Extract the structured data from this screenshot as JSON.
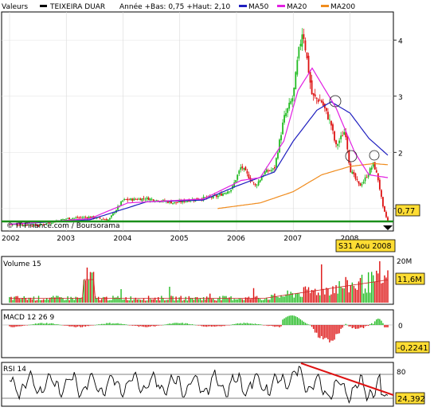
{
  "legend": {
    "prefix": "Valeurs",
    "security": "TEIXEIRA DUAR",
    "year_info": "Année +Bas: 0,75 +Haut: 2,10",
    "items": [
      {
        "label": "MA50",
        "color": "#1f1fbf"
      },
      {
        "label": "MA20",
        "color": "#e21fe2"
      },
      {
        "label": "MA200",
        "color": "#f08c1e"
      }
    ],
    "swatch_color": "#000000"
  },
  "credit": "© IT-Finance.com / Boursorama",
  "date_badge": "S31 Aou 2008",
  "chart_data": [
    {
      "type": "line",
      "title": "TEIXEIRA DUAR",
      "description_kind": "candlestick price with moving averages",
      "x_tick_labels": [
        "2002",
        "2003",
        "2004",
        "2005",
        "2006",
        "2007",
        "2008"
      ],
      "y_tick_labels": [
        "1",
        "2",
        "3",
        "4"
      ],
      "ylim": [
        0.6,
        4.5
      ],
      "last_value_label": "0,77",
      "support_level": 0.77,
      "colors": {
        "up": "#22bb22",
        "down": "#dd1111",
        "support": "#1a8f1a"
      },
      "close_anchors": [
        [
          "2002-01",
          0.72
        ],
        [
          "2002-07",
          0.7
        ],
        [
          "2003-01",
          0.82
        ],
        [
          "2003-06",
          0.85
        ],
        [
          "2003-10",
          0.8
        ],
        [
          "2004-01",
          1.15
        ],
        [
          "2004-06",
          1.18
        ],
        [
          "2004-12",
          1.1
        ],
        [
          "2005-03",
          1.15
        ],
        [
          "2005-09",
          1.22
        ],
        [
          "2005-12",
          1.35
        ],
        [
          "2006-02",
          1.75
        ],
        [
          "2006-05",
          1.4
        ],
        [
          "2006-07",
          1.65
        ],
        [
          "2006-09",
          1.7
        ],
        [
          "2006-11",
          2.6
        ],
        [
          "2007-01",
          3.0
        ],
        [
          "2007-02",
          3.7
        ],
        [
          "2007-03",
          4.2
        ],
        [
          "2007-05",
          3.0
        ],
        [
          "2007-07",
          2.9
        ],
        [
          "2007-09",
          2.5
        ],
        [
          "2007-10",
          2.1
        ],
        [
          "2007-12",
          2.4
        ],
        [
          "2008-01",
          1.7
        ],
        [
          "2008-03",
          1.4
        ],
        [
          "2008-04",
          1.5
        ],
        [
          "2008-06",
          1.8
        ],
        [
          "2008-07",
          1.5
        ],
        [
          "2008-08",
          1.0
        ],
        [
          "2008-09",
          0.77
        ]
      ],
      "ma50_anchors": [
        [
          "2002-01",
          0.72
        ],
        [
          "2003-06",
          0.8
        ],
        [
          "2004-06",
          1.12
        ],
        [
          "2005-06",
          1.15
        ],
        [
          "2006-01",
          1.4
        ],
        [
          "2006-09",
          1.65
        ],
        [
          "2007-01",
          2.2
        ],
        [
          "2007-06",
          2.75
        ],
        [
          "2007-09",
          2.9
        ],
        [
          "2008-01",
          2.7
        ],
        [
          "2008-05",
          2.25
        ],
        [
          "2008-09",
          1.95
        ]
      ],
      "ma20_anchors": [
        [
          "2002-01",
          0.72
        ],
        [
          "2003-06",
          0.82
        ],
        [
          "2004-02",
          1.1
        ],
        [
          "2005-06",
          1.17
        ],
        [
          "2006-02",
          1.5
        ],
        [
          "2006-06",
          1.55
        ],
        [
          "2006-11",
          2.2
        ],
        [
          "2007-02",
          3.1
        ],
        [
          "2007-05",
          3.5
        ],
        [
          "2007-10",
          2.8
        ],
        [
          "2008-02",
          2.0
        ],
        [
          "2008-05",
          1.6
        ],
        [
          "2008-09",
          1.55
        ]
      ],
      "ma200_anchors": [
        [
          "2005-09",
          1.0
        ],
        [
          "2006-06",
          1.1
        ],
        [
          "2007-01",
          1.3
        ],
        [
          "2007-07",
          1.6
        ],
        [
          "2008-01",
          1.75
        ],
        [
          "2008-06",
          1.8
        ],
        [
          "2008-09",
          1.78
        ]
      ]
    },
    {
      "type": "bar",
      "title": "Volume 15",
      "y_tick_labels": [
        "20M"
      ],
      "last_value_label": "11,6M"
    },
    {
      "type": "bar",
      "title": "MACD 12 26 9",
      "y_tick_labels": [
        "0"
      ],
      "last_value_label": "-0,2241"
    },
    {
      "type": "line",
      "title": "RSI 14",
      "y_tick_labels": [
        "80"
      ],
      "ylim": [
        0,
        100
      ],
      "last_value_label": "24,392",
      "color": "#000000"
    }
  ]
}
